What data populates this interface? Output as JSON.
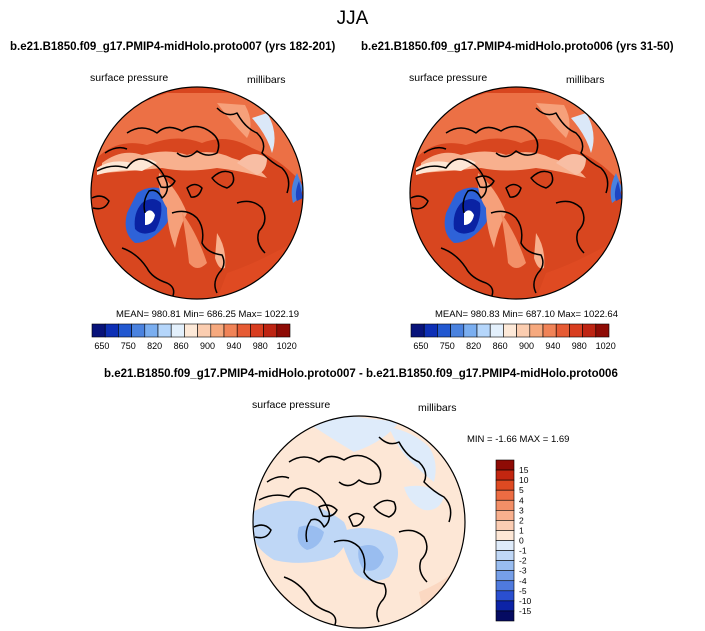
{
  "season": "JJA",
  "panels": [
    {
      "title": "b.e21.B1850.f09_g17.PMIP4-midHolo.proto007 (yrs 182-201)",
      "left_label": "surface pressure",
      "right_label": "millibars",
      "stats": "MEAN= 980.81   Min= 686.25   Max= 1022.19"
    },
    {
      "title": "b.e21.B1850.f09_g17.PMIP4-midHolo.proto006 (yrs 31-50)",
      "left_label": "surface pressure",
      "right_label": "millibars",
      "stats": "MEAN= 980.83   Min= 687.10   Max= 1022.64"
    }
  ],
  "diff_panel": {
    "title": "b.e21.B1850.f09_g17.PMIP4-midHolo.proto007 - b.e21.B1850.f09_g17.PMIP4-midHolo.proto006",
    "left_label": "surface pressure",
    "right_label": "millibars",
    "stats": "MIN =  -1.66 MAX =   1.69"
  },
  "chart_data": [
    {
      "type": "heatmap",
      "projection": "north polar stereographic",
      "variable": "surface pressure",
      "units": "millibars",
      "stats": {
        "mean": 980.81,
        "min": 686.25,
        "max": 1022.19
      },
      "colorbar": {
        "labels": [
          "650",
          "750",
          "820",
          "860",
          "900",
          "940",
          "980",
          "1020"
        ],
        "colors": [
          "#08137a",
          "#0d2fb5",
          "#2258d0",
          "#4a82df",
          "#7aaef0",
          "#b5d6fb",
          "#e3f0fc",
          "#fde9d8",
          "#fbcdb0",
          "#f6a97e",
          "#f08357",
          "#e65b34",
          "#d83d1f",
          "#be2412",
          "#8e0b05"
        ]
      }
    },
    {
      "type": "heatmap",
      "projection": "north polar stereographic",
      "variable": "surface pressure",
      "units": "millibars",
      "stats": {
        "mean": 980.83,
        "min": 687.1,
        "max": 1022.64
      },
      "colorbar": {
        "labels": [
          "650",
          "750",
          "820",
          "860",
          "900",
          "940",
          "980",
          "1020"
        ],
        "colors": [
          "#08137a",
          "#0d2fb5",
          "#2258d0",
          "#4a82df",
          "#7aaef0",
          "#b5d6fb",
          "#e3f0fc",
          "#fde9d8",
          "#fbcdb0",
          "#f6a97e",
          "#f08357",
          "#e65b34",
          "#d83d1f",
          "#be2412",
          "#8e0b05"
        ]
      }
    },
    {
      "type": "heatmap",
      "projection": "north polar stereographic",
      "variable": "surface pressure difference",
      "units": "millibars",
      "stats": {
        "min": -1.66,
        "max": 1.69
      },
      "colorbar": {
        "labels": [
          "15",
          "10",
          "5",
          "4",
          "3",
          "2",
          "1",
          "0",
          "-1",
          "-2",
          "-3",
          "-4",
          "-5",
          "-10",
          "-15"
        ],
        "colors": [
          "#8e0b05",
          "#c22610",
          "#de4a22",
          "#ec6c43",
          "#f38f67",
          "#f8b08e",
          "#fbcdb3",
          "#fde7d6",
          "#deebfa",
          "#bfd7f6",
          "#99bdf0",
          "#769fe8",
          "#4f7ade",
          "#2a4fd0",
          "#0c23a6",
          "#050b62"
        ]
      }
    }
  ]
}
